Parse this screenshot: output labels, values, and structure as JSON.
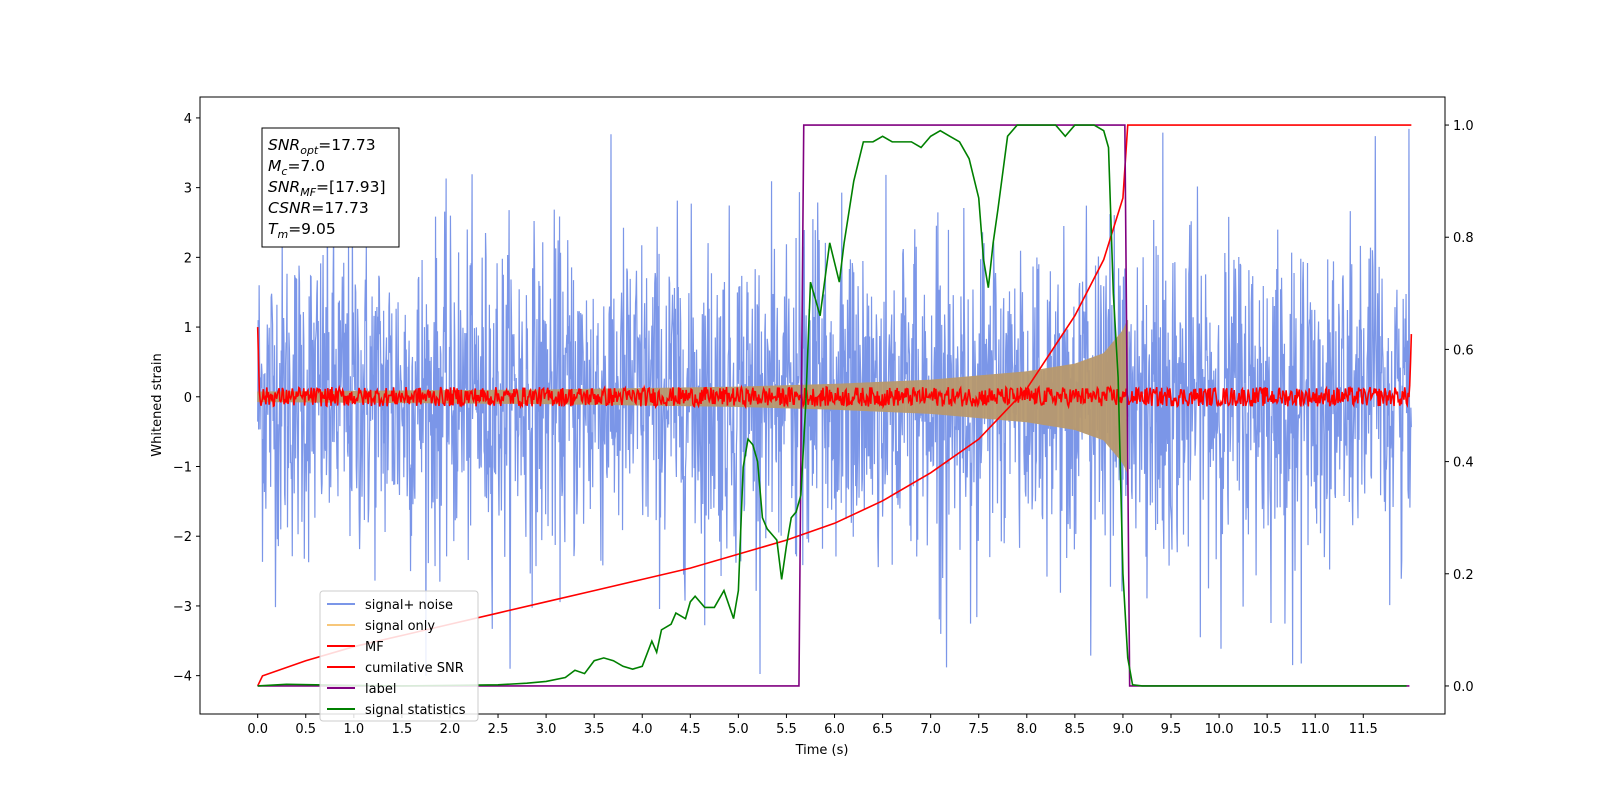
{
  "chart_data": {
    "type": "line",
    "xlabel": "Time (s)",
    "ylabel": "Whitened strain",
    "xlim": [
      -0.6,
      12.35
    ],
    "ylim": [
      -4.55,
      4.3
    ],
    "ylim_right": [
      -0.05,
      1.05
    ],
    "x_ticks": [
      0.0,
      0.5,
      1.0,
      1.5,
      2.0,
      2.5,
      3.0,
      3.5,
      4.0,
      4.5,
      5.0,
      5.5,
      6.0,
      6.5,
      7.0,
      7.5,
      8.0,
      8.5,
      9.0,
      9.5,
      10.0,
      10.5,
      11.0,
      11.5
    ],
    "x_tick_labels": [
      "0.0",
      "0.5",
      "1.0",
      "1.5",
      "2.0",
      "2.5",
      "3.0",
      "3.5",
      "4.0",
      "4.5",
      "5.0",
      "5.5",
      "6.0",
      "6.5",
      "7.0",
      "7.5",
      "8.0",
      "8.5",
      "9.0",
      "9.5",
      "10.0",
      "10.5",
      "11.0",
      "11.5"
    ],
    "y_ticks": [
      -4,
      -3,
      -2,
      -1,
      0,
      1,
      2,
      3,
      4
    ],
    "y_tick_labels": [
      "−4",
      "−3",
      "−2",
      "−1",
      "0",
      "1",
      "2",
      "3",
      "4"
    ],
    "y_right_ticks": [
      0.0,
      0.2,
      0.4,
      0.6,
      0.8,
      1.0
    ],
    "y_right_tick_labels": [
      "0.0",
      "0.2",
      "0.4",
      "0.6",
      "0.8",
      "1.0"
    ],
    "legend_position": "lower-left",
    "legend": [
      {
        "label": "signal+ noise",
        "color": "#7b96e8"
      },
      {
        "label": "signal only",
        "color": "#f7c77a"
      },
      {
        "label": "MF",
        "color": "#ff0000"
      },
      {
        "label": "cumilative SNR",
        "color": "#ff0000"
      },
      {
        "label": "label",
        "color": "#800080"
      },
      {
        "label": "signal statistics",
        "color": "#008000"
      }
    ],
    "annotation": [
      {
        "name": "SNR",
        "sub": "opt",
        "value": "=17.73"
      },
      {
        "name": "M",
        "sub": "c",
        "value": "=7.0"
      },
      {
        "name": "SNR",
        "sub": "MF",
        "value": "=[17.93]"
      },
      {
        "name": "CSNR",
        "sub": "",
        "value": "=17.73"
      },
      {
        "name": "T",
        "sub": "m",
        "value": "=9.05"
      }
    ],
    "series": [
      {
        "name": "signal+ noise",
        "axis": "left",
        "t_start": 0.0,
        "t_end": 12.0,
        "typical_range": [
          -2.5,
          2.5
        ],
        "extremes": [
          -4.1,
          3.9
        ],
        "color": "#7b96e8"
      },
      {
        "name": "signal only",
        "axis": "left",
        "t_start": 0.0,
        "t_end": 9.05,
        "envelope": {
          "x": [
            0.0,
            3.0,
            5.0,
            6.0,
            7.0,
            8.0,
            8.5,
            8.8,
            9.0,
            9.05
          ],
          "amp": [
            0.07,
            0.1,
            0.14,
            0.18,
            0.24,
            0.36,
            0.47,
            0.62,
            0.95,
            1.1
          ]
        },
        "color": "#b8996e"
      },
      {
        "name": "MF",
        "axis": "left",
        "t_start": 0.0,
        "t_end": 12.0,
        "start_value": 1.0,
        "end_value": 0.9,
        "noise_range": [
          -0.1,
          0.1
        ],
        "color": "#ff0000"
      },
      {
        "name": "cumilative SNR",
        "axis": "right",
        "x": [
          0.0,
          0.05,
          0.5,
          1.0,
          1.5,
          2.0,
          2.5,
          3.0,
          3.5,
          4.0,
          4.5,
          5.0,
          5.5,
          6.0,
          6.5,
          7.0,
          7.5,
          8.0,
          8.5,
          8.8,
          9.0,
          9.05,
          12.0
        ],
        "y": [
          0.0,
          0.018,
          0.045,
          0.07,
          0.09,
          0.11,
          0.13,
          0.15,
          0.17,
          0.19,
          0.21,
          0.235,
          0.26,
          0.29,
          0.33,
          0.38,
          0.44,
          0.53,
          0.66,
          0.76,
          0.87,
          1.0,
          1.0
        ],
        "color": "#ff0000"
      },
      {
        "name": "label",
        "axis": "right",
        "x": [
          0.0,
          5.63,
          5.68,
          9.02,
          9.07,
          11.98
        ],
        "y": [
          0.0,
          0.0,
          1.0,
          1.0,
          0.0,
          0.0
        ],
        "color": "#800080"
      },
      {
        "name": "signal statistics",
        "axis": "right",
        "x": [
          0.0,
          0.3,
          0.6,
          1.0,
          1.5,
          2.0,
          2.5,
          2.8,
          3.0,
          3.2,
          3.3,
          3.4,
          3.5,
          3.6,
          3.7,
          3.8,
          3.9,
          4.0,
          4.1,
          4.15,
          4.2,
          4.3,
          4.35,
          4.45,
          4.5,
          4.55,
          4.65,
          4.75,
          4.85,
          4.95,
          5.0,
          5.05,
          5.1,
          5.15,
          5.2,
          5.25,
          5.3,
          5.35,
          5.4,
          5.45,
          5.5,
          5.55,
          5.6,
          5.65,
          5.7,
          5.75,
          5.8,
          5.85,
          5.95,
          6.05,
          6.1,
          6.2,
          6.3,
          6.4,
          6.5,
          6.6,
          6.7,
          6.8,
          6.9,
          7.0,
          7.1,
          7.2,
          7.3,
          7.4,
          7.5,
          7.55,
          7.6,
          7.65,
          7.7,
          7.8,
          7.9,
          8.0,
          8.1,
          8.2,
          8.3,
          8.35,
          8.4,
          8.5,
          8.6,
          8.7,
          8.8,
          8.85,
          8.9,
          8.95,
          9.0,
          9.05,
          9.1,
          9.2,
          9.5,
          10.0,
          11.0,
          11.95
        ],
        "y": [
          0.0,
          0.003,
          0.002,
          0.001,
          0.0,
          0.001,
          0.002,
          0.005,
          0.008,
          0.015,
          0.028,
          0.022,
          0.045,
          0.05,
          0.045,
          0.035,
          0.03,
          0.035,
          0.08,
          0.06,
          0.1,
          0.11,
          0.13,
          0.12,
          0.15,
          0.16,
          0.14,
          0.14,
          0.17,
          0.12,
          0.17,
          0.39,
          0.44,
          0.43,
          0.4,
          0.3,
          0.28,
          0.27,
          0.26,
          0.19,
          0.25,
          0.3,
          0.31,
          0.34,
          0.5,
          0.72,
          0.69,
          0.66,
          0.79,
          0.72,
          0.79,
          0.9,
          0.97,
          0.97,
          0.98,
          0.97,
          0.97,
          0.97,
          0.96,
          0.98,
          0.99,
          0.98,
          0.97,
          0.94,
          0.87,
          0.76,
          0.71,
          0.79,
          0.85,
          0.98,
          1.0,
          1.0,
          1.0,
          1.0,
          1.0,
          0.99,
          0.98,
          1.0,
          1.0,
          1.0,
          0.99,
          0.96,
          0.7,
          0.55,
          0.2,
          0.05,
          0.002,
          0.0,
          0.0,
          0.0,
          0.0,
          0.0
        ],
        "color": "#008000"
      }
    ]
  }
}
